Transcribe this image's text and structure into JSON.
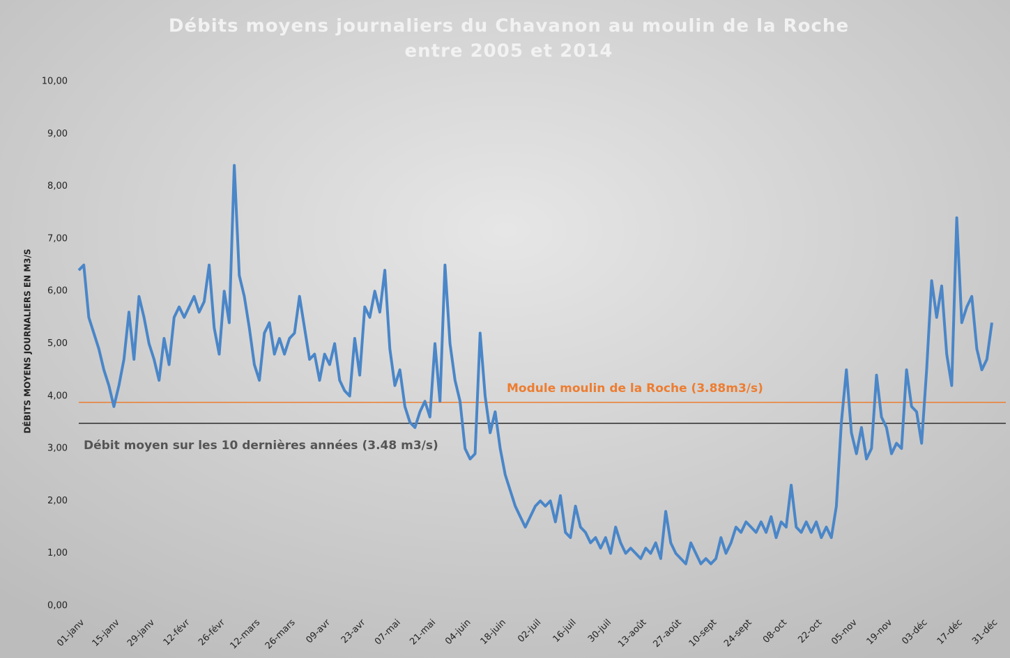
{
  "chart_data": {
    "type": "line",
    "title": [
      "Débits moyens journaliers du Chavanon au moulin de la Roche",
      "entre 2005 et 2014"
    ],
    "y_label": "DÉBITS MOYENS JOURNALIERS EN M3/S",
    "categories": [
      "01-janv",
      null,
      null,
      null,
      null,
      null,
      null,
      "15-janv",
      null,
      null,
      null,
      null,
      null,
      null,
      "29-janv",
      null,
      null,
      null,
      null,
      null,
      null,
      "12-févr",
      null,
      null,
      null,
      null,
      null,
      null,
      "26-févr",
      null,
      null,
      null,
      null,
      null,
      null,
      "12-mars",
      null,
      null,
      null,
      null,
      null,
      null,
      "26-mars",
      null,
      null,
      null,
      null,
      null,
      null,
      "09-avr",
      null,
      null,
      null,
      null,
      null,
      null,
      "23-avr",
      null,
      null,
      null,
      null,
      null,
      null,
      "07-mai",
      null,
      null,
      null,
      null,
      null,
      null,
      "21-mai",
      null,
      null,
      null,
      null,
      null,
      null,
      "04-juin",
      null,
      null,
      null,
      null,
      null,
      null,
      "18-juin",
      null,
      null,
      null,
      null,
      null,
      null,
      "02-juil",
      null,
      null,
      null,
      null,
      null,
      null,
      "16-juil",
      null,
      null,
      null,
      null,
      null,
      null,
      "30-juil",
      null,
      null,
      null,
      null,
      null,
      null,
      "13-août",
      null,
      null,
      null,
      null,
      null,
      null,
      "27-août",
      null,
      null,
      null,
      null,
      null,
      null,
      "10-sept",
      null,
      null,
      null,
      null,
      null,
      null,
      "24-sept",
      null,
      null,
      null,
      null,
      null,
      null,
      "08-oct",
      null,
      null,
      null,
      null,
      null,
      null,
      "22-oct",
      null,
      null,
      null,
      null,
      null,
      null,
      "05-nov",
      null,
      null,
      null,
      null,
      null,
      null,
      "19-nov",
      null,
      null,
      null,
      null,
      null,
      null,
      "03-déc",
      null,
      null,
      null,
      null,
      null,
      null,
      "17-déc",
      null,
      null,
      null,
      null,
      null,
      null,
      "31-déc"
    ],
    "series": [
      {
        "name": "Débits moyens journaliers",
        "color": "#4a86c8",
        "values": [
          6.4,
          6.5,
          5.5,
          5.2,
          4.9,
          4.5,
          4.2,
          3.8,
          4.2,
          4.7,
          5.6,
          4.7,
          5.9,
          5.5,
          5.0,
          4.7,
          4.3,
          5.1,
          4.6,
          5.5,
          5.7,
          5.5,
          5.7,
          5.9,
          5.6,
          5.8,
          6.5,
          5.3,
          4.8,
          6.0,
          5.4,
          8.4,
          6.3,
          5.9,
          5.3,
          4.6,
          4.3,
          5.2,
          5.4,
          4.8,
          5.1,
          4.8,
          5.1,
          5.2,
          5.9,
          5.3,
          4.7,
          4.8,
          4.3,
          4.8,
          4.6,
          5.0,
          4.3,
          4.1,
          4.0,
          5.1,
          4.4,
          5.7,
          5.5,
          6.0,
          5.6,
          6.4,
          4.9,
          4.2,
          4.5,
          3.8,
          3.5,
          3.4,
          3.7,
          3.9,
          3.6,
          5.0,
          3.9,
          6.5,
          5.0,
          4.3,
          3.9,
          3.0,
          2.8,
          2.9,
          5.2,
          4.0,
          3.3,
          3.7,
          3.0,
          2.5,
          2.2,
          1.9,
          1.7,
          1.5,
          1.7,
          1.9,
          2.0,
          1.9,
          2.0,
          1.6,
          2.1,
          1.4,
          1.3,
          1.9,
          1.5,
          1.4,
          1.2,
          1.3,
          1.1,
          1.3,
          1.0,
          1.5,
          1.2,
          1.0,
          1.1,
          1.0,
          0.9,
          1.1,
          1.0,
          1.2,
          0.9,
          1.8,
          1.2,
          1.0,
          0.9,
          0.8,
          1.2,
          1.0,
          0.8,
          0.9,
          0.8,
          0.9,
          1.3,
          1.0,
          1.2,
          1.5,
          1.4,
          1.6,
          1.5,
          1.4,
          1.6,
          1.4,
          1.7,
          1.3,
          1.6,
          1.5,
          2.3,
          1.5,
          1.4,
          1.6,
          1.4,
          1.6,
          1.3,
          1.5,
          1.3,
          1.9,
          3.5,
          4.5,
          3.3,
          2.9,
          3.4,
          2.8,
          3.0,
          4.4,
          3.6,
          3.4,
          2.9,
          3.1,
          3.0,
          4.5,
          3.8,
          3.7,
          3.1,
          4.5,
          6.2,
          5.5,
          6.1,
          4.8,
          4.2,
          7.4,
          5.4,
          5.7,
          5.9,
          4.9,
          4.5,
          4.7,
          5.4
        ]
      }
    ],
    "reference_lines": [
      {
        "label": "Module moulin de la Roche (3.88m3/s)",
        "value": 3.88,
        "color": "#ed7d31"
      },
      {
        "label": "Débit moyen sur les 10 dernières années (3.48 m3/s)",
        "value": 3.48,
        "color": "#555555"
      }
    ],
    "ylim": [
      0,
      10
    ],
    "yticks": [
      {
        "value": 0,
        "label": "0,00"
      },
      {
        "value": 1,
        "label": "1,00"
      },
      {
        "value": 2,
        "label": "2,00"
      },
      {
        "value": 3,
        "label": "3,00"
      },
      {
        "value": 4,
        "label": "4,00"
      },
      {
        "value": 5,
        "label": "5,00"
      },
      {
        "value": 6,
        "label": "6,00"
      },
      {
        "value": 7,
        "label": "7,00"
      },
      {
        "value": 8,
        "label": "8,00"
      },
      {
        "value": 9,
        "label": "9,00"
      },
      {
        "value": 10,
        "label": "10,00"
      }
    ],
    "grid": false
  }
}
